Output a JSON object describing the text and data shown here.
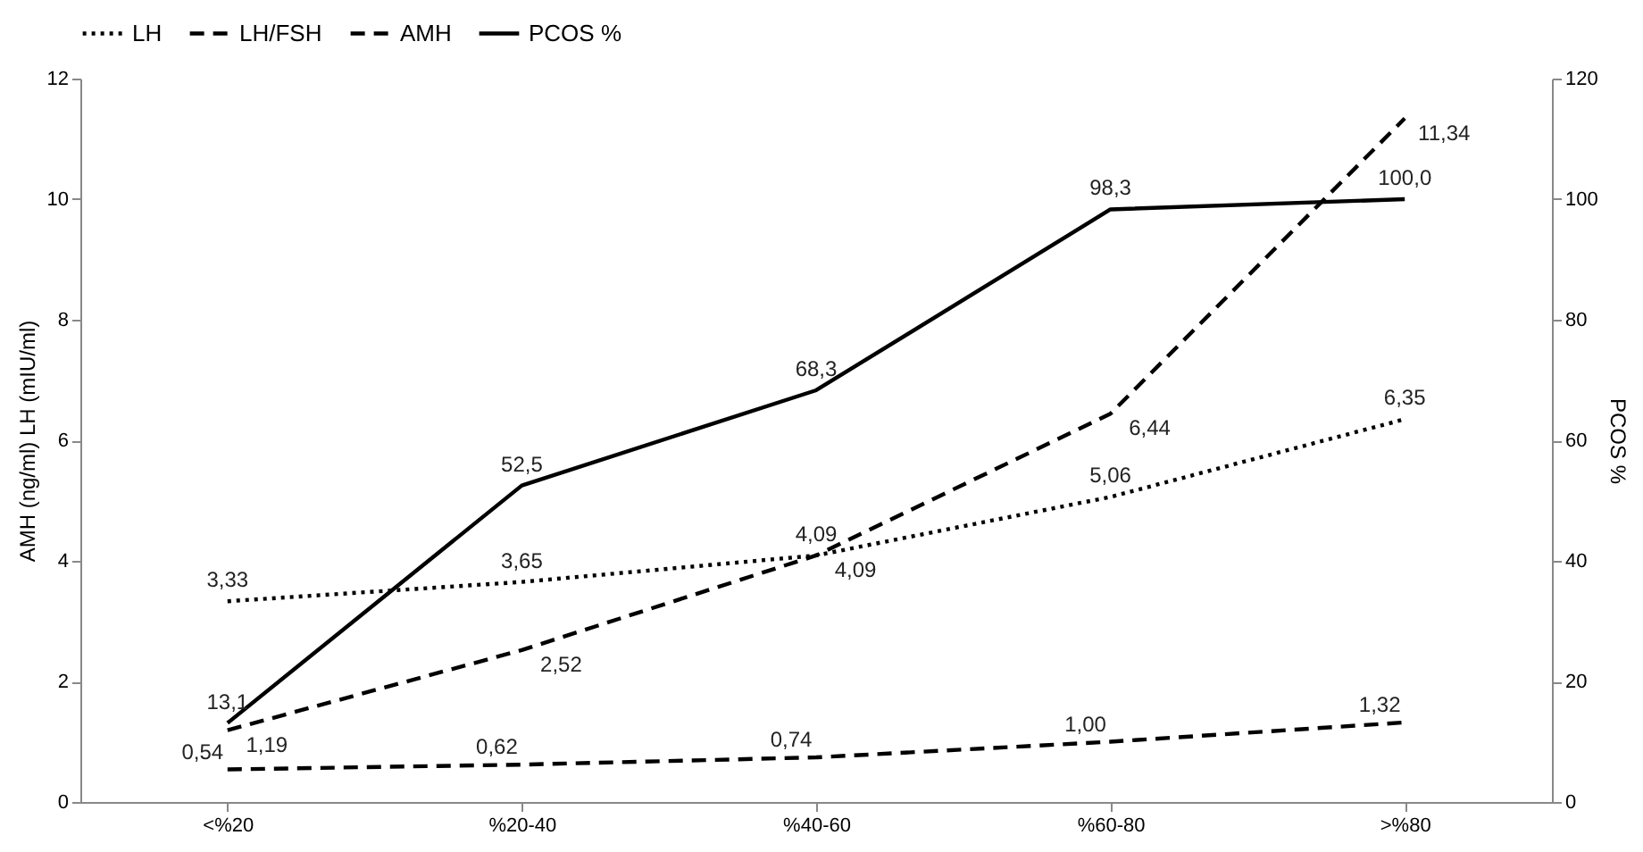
{
  "chart_data": {
    "type": "line",
    "categories": [
      "<%20",
      "%20-40",
      "%40-60",
      "%60-80",
      ">%80"
    ],
    "series": [
      {
        "name": "LH",
        "color": "#000000",
        "line_style": "dotted",
        "values": [
          3.33,
          3.65,
          4.09,
          5.06,
          6.35
        ],
        "value_labels": [
          "3,33",
          "3,65",
          "4,09",
          "5,06",
          "6,35"
        ]
      },
      {
        "name": "LH/FSH",
        "color": "#000000",
        "line_style": "dashed",
        "values": [
          0.54,
          0.62,
          0.74,
          1.0,
          1.32
        ],
        "value_labels": [
          "0,54",
          "0,62",
          "0,74",
          "1,00",
          "1,32"
        ]
      },
      {
        "name": "AMH",
        "color": "#000000",
        "line_style": "dashed",
        "values": [
          1.19,
          2.52,
          4.09,
          6.44,
          11.34
        ],
        "value_labels": [
          "1,19",
          "2,52",
          "4,09",
          "6,44",
          "11,34"
        ]
      },
      {
        "name": "PCOS %",
        "color": "#000000",
        "line_style": "solid",
        "axis": "y2",
        "values": [
          13.1,
          52.5,
          68.3,
          98.3,
          100.0
        ],
        "value_labels": [
          "13,1",
          "52,5",
          "68,3",
          "98,3",
          "100,0"
        ]
      }
    ],
    "ylabel": "AMH (ng/ml)  LH (mIU/ml)",
    "y2label": "PCOS %",
    "ylim": [
      0,
      12
    ],
    "yticks": [
      0,
      2,
      4,
      6,
      8,
      10,
      12
    ],
    "y2lim": [
      0,
      120
    ],
    "y2ticks": [
      0,
      20,
      40,
      60,
      80,
      100,
      120
    ],
    "legend": "top",
    "grid": false
  }
}
